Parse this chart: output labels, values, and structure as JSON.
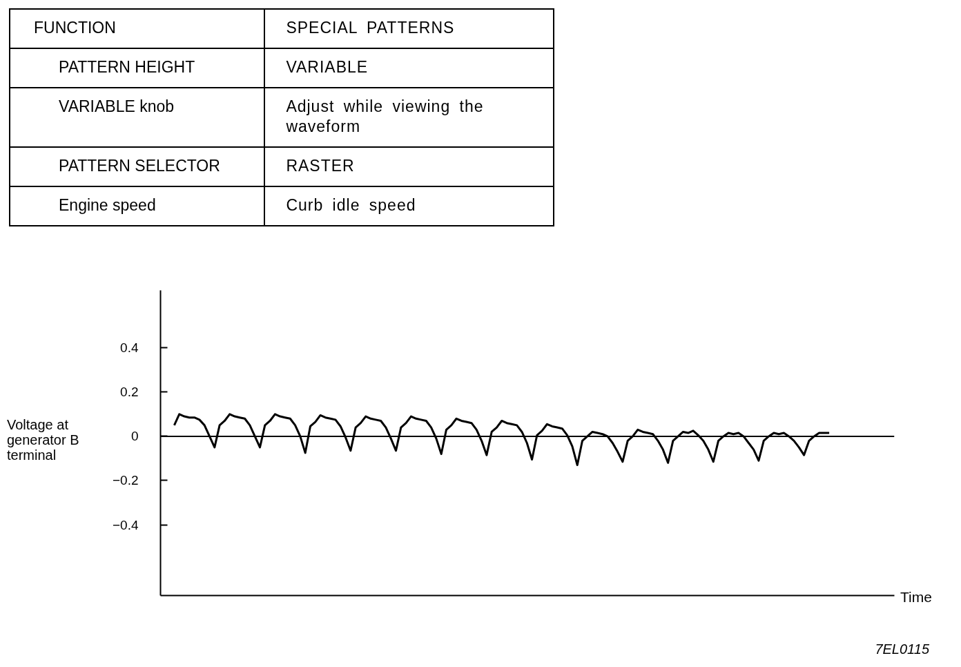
{
  "chart_data": [
    {
      "type": "other",
      "annotations": [
        "FUNCTION",
        "SPECIAL PATTERNS",
        "PATTERN HEIGHT",
        "VARIABLE",
        "VARIABLE knob",
        "Adjust while viewing the waveform",
        "PATTERN SELECTOR",
        "RASTER",
        "Engine speed",
        "Curb idle speed"
      ]
    },
    {
      "type": "line",
      "ylabel": "Voltage at generator B terminal",
      "xlabel": "Time",
      "annotations": [
        "7EL0115"
      ],
      "color": "#000000",
      "grid": false,
      "tick_labels": "y",
      "ylim": [
        -0.72,
        0.66
      ],
      "yticks": [
        {
          "value": -0.4,
          "label": "−0.4"
        },
        {
          "value": -0.2,
          "label": "−0.2"
        },
        0,
        0.2,
        0.4
      ],
      "ref_lines": [
        {
          "axis": "y",
          "value": 0,
          "color": "#000000"
        }
      ],
      "categories": [
        null,
        null,
        null,
        null,
        null,
        null,
        null,
        null,
        null,
        null,
        null,
        null,
        null,
        null,
        null,
        null,
        null,
        null,
        null,
        null,
        null,
        null,
        null,
        null,
        null,
        null,
        null,
        null,
        null,
        null,
        null,
        null,
        null,
        null,
        null,
        null,
        null,
        null,
        null,
        null,
        null,
        null,
        null,
        null,
        null,
        null,
        null,
        null,
        null,
        null,
        null,
        null,
        null,
        null,
        null,
        null,
        null,
        null,
        null,
        null,
        null,
        null,
        null,
        null,
        null,
        null,
        null,
        null,
        null,
        null,
        null,
        null,
        null,
        null,
        null,
        null,
        null,
        null,
        null,
        null,
        null,
        null,
        null,
        null,
        null,
        null,
        null,
        null,
        null,
        null,
        null,
        null,
        null,
        null,
        null,
        null,
        null,
        null,
        null,
        null,
        null,
        null,
        null,
        null,
        null,
        null,
        null,
        null,
        null,
        null,
        null,
        null,
        null,
        null,
        null,
        null,
        null,
        null,
        null,
        null,
        null,
        null,
        null,
        null,
        null,
        null,
        null,
        null,
        null,
        null,
        null
      ],
      "values": [
        0.05,
        0.1,
        0.09,
        0.085,
        0.085,
        0.075,
        0.05,
        0.0,
        -0.05,
        0.05,
        0.07,
        0.1,
        0.09,
        0.085,
        0.08,
        0.05,
        0.0,
        -0.05,
        0.05,
        0.07,
        0.1,
        0.09,
        0.085,
        0.08,
        0.05,
        0.0,
        -0.075,
        0.045,
        0.065,
        0.095,
        0.085,
        0.08,
        0.075,
        0.045,
        -0.005,
        -0.065,
        0.04,
        0.06,
        0.09,
        0.08,
        0.075,
        0.07,
        0.04,
        -0.01,
        -0.065,
        0.04,
        0.06,
        0.09,
        0.08,
        0.075,
        0.07,
        0.04,
        -0.01,
        -0.08,
        0.03,
        0.05,
        0.08,
        0.07,
        0.065,
        0.06,
        0.03,
        -0.02,
        -0.085,
        0.02,
        0.04,
        0.07,
        0.06,
        0.055,
        0.05,
        0.02,
        -0.03,
        -0.105,
        0.005,
        0.025,
        0.055,
        0.045,
        0.04,
        0.035,
        0.005,
        -0.045,
        -0.13,
        -0.02,
        0.0,
        0.02,
        0.015,
        0.01,
        0.0,
        -0.03,
        -0.07,
        -0.115,
        -0.02,
        0.0,
        0.03,
        0.02,
        0.015,
        0.01,
        -0.02,
        -0.06,
        -0.12,
        -0.02,
        0.0,
        0.02,
        0.015,
        0.025,
        0.005,
        -0.02,
        -0.06,
        -0.115,
        -0.02,
        0.0,
        0.015,
        0.01,
        0.015,
        0.0,
        -0.03,
        -0.06,
        -0.11,
        -0.02,
        0.0,
        0.015,
        0.01,
        0.015,
        0.0,
        -0.02,
        -0.05,
        -0.085,
        -0.02,
        0.0,
        0.015,
        0.015,
        0.015
      ]
    }
  ]
}
